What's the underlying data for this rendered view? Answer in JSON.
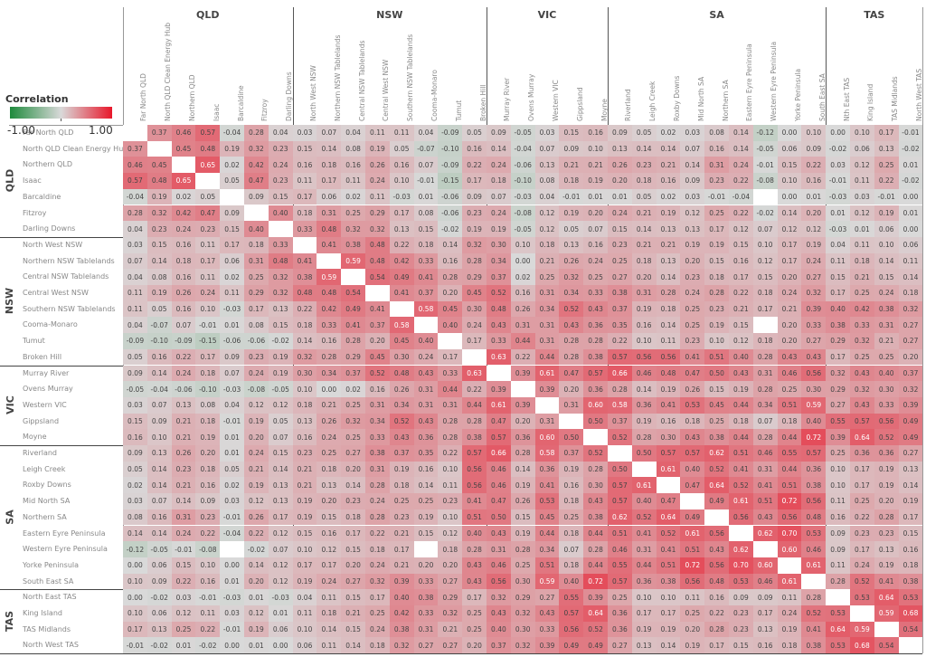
{
  "chart_data": {
    "type": "heatmap",
    "legend": {
      "title": "Correlation",
      "min_label": "-1.00",
      "max_label": "1.00",
      "range": [
        -1,
        1
      ],
      "placement": "top-left"
    },
    "colors": {
      "negative": "#1e8a3c",
      "zero": "#d9d9d9",
      "positive": "#e8172a",
      "empty": "#ffffff"
    },
    "column_groups": [
      {
        "name": "QLD",
        "columns": [
          "Far North QLD",
          "North QLD Clean Energy Hub",
          "Northern QLD",
          "Isaac",
          "Barcaldine",
          "Fitzroy",
          "Darling Downs"
        ]
      },
      {
        "name": "NSW",
        "columns": [
          "North West NSW",
          "Northern NSW Tablelands",
          "Central NSW Tablelands",
          "Central West NSW",
          "Southern NSW Tablelands",
          "Cooma-Monaro",
          "Tumut",
          "Broken Hill"
        ]
      },
      {
        "name": "VIC",
        "columns": [
          "Murray River",
          "Ovens Murray",
          "Western VIC",
          "Gippsland",
          "Moyne"
        ]
      },
      {
        "name": "SA",
        "columns": [
          "Riverland",
          "Leigh Creek",
          "Roxby Downs",
          "Mid North SA",
          "Northern SA",
          "Eastern Eyre Peninsula",
          "Western Eyre Peninsula",
          "Yorke Peninsula",
          "South East SA"
        ]
      },
      {
        "name": "TAS",
        "columns": [
          "Nth East TAS",
          "King Island",
          "TAS Midlands",
          "North West TAS"
        ]
      }
    ],
    "row_groups": [
      {
        "name": "QLD",
        "rows": [
          "Far North QLD",
          "North QLD Clean Energy Hub",
          "Northern QLD",
          "Isaac",
          "Barcaldine",
          "Fitzroy",
          "Darling Downs"
        ]
      },
      {
        "name": "NSW",
        "rows": [
          "North West NSW",
          "Northern NSW Tablelands",
          "Central NSW Tablelands",
          "Central West NSW",
          "Southern NSW Tablelands",
          "Cooma-Monaro",
          "Tumut",
          "Broken Hill"
        ]
      },
      {
        "name": "VIC",
        "rows": [
          "Murray River",
          "Ovens Murray",
          "Western VIC",
          "Gippsland",
          "Moyne"
        ]
      },
      {
        "name": "SA",
        "rows": [
          "Riverland",
          "Leigh Creek",
          "Roxby Downs",
          "Mid North SA",
          "Northern SA",
          "Eastern Eyre Peninsula",
          "Western Eyre Peninsula",
          "Yorke Peninsula",
          "South East SA"
        ]
      },
      {
        "name": "TAS",
        "rows": [
          "North East TAS",
          "King Island",
          "TAS Midlands",
          "North West TAS"
        ]
      }
    ],
    "values": [
      [
        null,
        0.37,
        0.46,
        0.57,
        -0.04,
        0.28,
        0.04,
        0.03,
        0.07,
        0.04,
        0.11,
        0.11,
        0.04,
        -0.09,
        0.05,
        0.09,
        -0.05,
        0.03,
        0.15,
        0.16,
        0.09,
        0.05,
        0.02,
        0.03,
        0.08,
        0.14,
        -0.12,
        0.0,
        0.1,
        0.0,
        0.1,
        0.17,
        -0.01
      ],
      [
        0.37,
        null,
        0.45,
        0.48,
        0.19,
        0.32,
        0.23,
        0.15,
        0.14,
        0.08,
        0.19,
        0.05,
        -0.07,
        -0.1,
        0.16,
        0.14,
        -0.04,
        0.07,
        0.09,
        0.1,
        0.13,
        0.14,
        0.14,
        0.07,
        0.16,
        0.14,
        -0.05,
        0.06,
        0.09,
        -0.02,
        0.06,
        0.13,
        -0.02
      ],
      [
        0.46,
        0.45,
        null,
        0.65,
        0.02,
        0.42,
        0.24,
        0.16,
        0.18,
        0.16,
        0.26,
        0.16,
        0.07,
        -0.09,
        0.22,
        0.24,
        -0.06,
        0.13,
        0.21,
        0.21,
        0.26,
        0.23,
        0.21,
        0.14,
        0.31,
        0.24,
        -0.01,
        0.15,
        0.22,
        0.03,
        0.12,
        0.25,
        0.01
      ],
      [
        0.57,
        0.48,
        0.65,
        null,
        0.05,
        0.47,
        0.23,
        0.11,
        0.17,
        0.11,
        0.24,
        0.1,
        -0.01,
        -0.15,
        0.17,
        0.18,
        -0.1,
        0.08,
        0.18,
        0.19,
        0.2,
        0.18,
        0.16,
        0.09,
        0.23,
        0.22,
        -0.08,
        0.1,
        0.16,
        -0.01,
        0.11,
        0.22,
        -0.02
      ],
      [
        -0.04,
        0.19,
        0.02,
        0.05,
        null,
        0.09,
        0.15,
        0.17,
        0.06,
        0.02,
        0.11,
        -0.03,
        0.01,
        -0.06,
        0.09,
        0.07,
        -0.03,
        0.04,
        -0.01,
        0.01,
        0.01,
        0.05,
        0.02,
        0.03,
        -0.01,
        -0.04,
        null,
        0.0,
        0.01,
        -0.03,
        0.03,
        -0.01,
        0.0
      ],
      [
        0.28,
        0.32,
        0.42,
        0.47,
        0.09,
        null,
        0.4,
        0.18,
        0.31,
        0.25,
        0.29,
        0.17,
        0.08,
        -0.06,
        0.23,
        0.24,
        -0.08,
        0.12,
        0.19,
        0.2,
        0.24,
        0.21,
        0.19,
        0.12,
        0.25,
        0.22,
        -0.02,
        0.14,
        0.2,
        0.01,
        0.12,
        0.19,
        0.01
      ],
      [
        0.04,
        0.23,
        0.24,
        0.23,
        0.15,
        0.4,
        null,
        0.33,
        0.48,
        0.32,
        0.32,
        0.13,
        0.15,
        -0.02,
        0.19,
        0.19,
        -0.05,
        0.12,
        0.05,
        0.07,
        0.15,
        0.14,
        0.13,
        0.13,
        0.17,
        0.12,
        0.07,
        0.12,
        0.12,
        -0.03,
        0.01,
        0.06,
        0.0
      ],
      [
        0.03,
        0.15,
        0.16,
        0.11,
        0.17,
        0.18,
        0.33,
        null,
        0.41,
        0.38,
        0.48,
        0.22,
        0.18,
        0.14,
        0.32,
        0.3,
        0.1,
        0.18,
        0.13,
        0.16,
        0.23,
        0.21,
        0.21,
        0.19,
        0.19,
        0.15,
        0.1,
        0.17,
        0.19,
        0.04,
        0.11,
        0.1,
        0.06
      ],
      [
        0.07,
        0.14,
        0.18,
        0.17,
        0.06,
        0.31,
        0.48,
        0.41,
        null,
        0.59,
        0.48,
        0.42,
        0.33,
        0.16,
        0.28,
        0.34,
        0.0,
        0.21,
        0.26,
        0.24,
        0.25,
        0.18,
        0.13,
        0.2,
        0.15,
        0.16,
        0.12,
        0.17,
        0.24,
        0.11,
        0.18,
        0.14,
        0.11
      ],
      [
        0.04,
        0.08,
        0.16,
        0.11,
        0.02,
        0.25,
        0.32,
        0.38,
        0.59,
        null,
        0.54,
        0.49,
        0.41,
        0.28,
        0.29,
        0.37,
        0.02,
        0.25,
        0.32,
        0.25,
        0.27,
        0.2,
        0.14,
        0.23,
        0.18,
        0.17,
        0.15,
        0.2,
        0.27,
        0.15,
        0.21,
        0.15,
        0.14
      ],
      [
        0.11,
        0.19,
        0.26,
        0.24,
        0.11,
        0.29,
        0.32,
        0.48,
        0.48,
        0.54,
        null,
        0.41,
        0.37,
        0.2,
        0.45,
        0.52,
        0.16,
        0.31,
        0.34,
        0.33,
        0.38,
        0.31,
        0.28,
        0.24,
        0.28,
        0.22,
        0.18,
        0.24,
        0.32,
        0.17,
        0.25,
        0.24,
        0.18
      ],
      [
        0.11,
        0.05,
        0.16,
        0.1,
        -0.03,
        0.17,
        0.13,
        0.22,
        0.42,
        0.49,
        0.41,
        null,
        0.58,
        0.45,
        0.3,
        0.48,
        0.26,
        0.34,
        0.52,
        0.43,
        0.37,
        0.19,
        0.18,
        0.25,
        0.23,
        0.21,
        0.17,
        0.21,
        0.39,
        0.4,
        0.42,
        0.38,
        0.32
      ],
      [
        0.04,
        -0.07,
        0.07,
        -0.01,
        0.01,
        0.08,
        0.15,
        0.18,
        0.33,
        0.41,
        0.37,
        0.58,
        null,
        0.4,
        0.24,
        0.43,
        0.31,
        0.31,
        0.43,
        0.36,
        0.35,
        0.16,
        0.14,
        0.25,
        0.19,
        0.15,
        null,
        0.2,
        0.33,
        0.38,
        0.33,
        0.31,
        0.27
      ],
      [
        -0.09,
        -0.1,
        -0.09,
        -0.15,
        -0.06,
        -0.06,
        -0.02,
        0.14,
        0.16,
        0.28,
        0.2,
        0.45,
        0.4,
        null,
        0.17,
        0.33,
        0.44,
        0.31,
        0.28,
        0.28,
        0.22,
        0.1,
        0.11,
        0.23,
        0.1,
        0.12,
        0.18,
        0.2,
        0.27,
        0.29,
        0.32,
        0.21,
        0.27
      ],
      [
        0.05,
        0.16,
        0.22,
        0.17,
        0.09,
        0.23,
        0.19,
        0.32,
        0.28,
        0.29,
        0.45,
        0.3,
        0.24,
        0.17,
        null,
        0.63,
        0.22,
        0.44,
        0.28,
        0.38,
        0.57,
        0.56,
        0.56,
        0.41,
        0.51,
        0.4,
        0.28,
        0.43,
        0.43,
        0.17,
        0.25,
        0.25,
        0.2
      ],
      [
        0.09,
        0.14,
        0.24,
        0.18,
        0.07,
        0.24,
        0.19,
        0.3,
        0.34,
        0.37,
        0.52,
        0.48,
        0.43,
        0.33,
        0.63,
        null,
        0.39,
        0.61,
        0.47,
        0.57,
        0.66,
        0.46,
        0.48,
        0.47,
        0.5,
        0.43,
        0.31,
        0.46,
        0.56,
        0.32,
        0.43,
        0.4,
        0.37
      ],
      [
        -0.05,
        -0.04,
        -0.06,
        -0.1,
        -0.03,
        -0.08,
        -0.05,
        0.1,
        0.0,
        0.02,
        0.16,
        0.26,
        0.31,
        0.44,
        0.22,
        0.39,
        null,
        0.39,
        0.2,
        0.36,
        0.28,
        0.14,
        0.19,
        0.26,
        0.15,
        0.19,
        0.28,
        0.25,
        0.3,
        0.29,
        0.32,
        0.3,
        0.32
      ],
      [
        0.03,
        0.07,
        0.13,
        0.08,
        0.04,
        0.12,
        0.12,
        0.18,
        0.21,
        0.25,
        0.31,
        0.34,
        0.31,
        0.31,
        0.44,
        0.61,
        0.39,
        null,
        0.31,
        0.6,
        0.58,
        0.36,
        0.41,
        0.53,
        0.45,
        0.44,
        0.34,
        0.51,
        0.59,
        0.27,
        0.43,
        0.33,
        0.39
      ],
      [
        0.15,
        0.09,
        0.21,
        0.18,
        -0.01,
        0.19,
        0.05,
        0.13,
        0.26,
        0.32,
        0.34,
        0.52,
        0.43,
        0.28,
        0.28,
        0.47,
        0.2,
        0.31,
        null,
        0.5,
        0.37,
        0.19,
        0.16,
        0.18,
        0.25,
        0.18,
        0.07,
        0.18,
        0.4,
        0.55,
        0.57,
        0.56,
        0.49
      ],
      [
        0.16,
        0.1,
        0.21,
        0.19,
        0.01,
        0.2,
        0.07,
        0.16,
        0.24,
        0.25,
        0.33,
        0.43,
        0.36,
        0.28,
        0.38,
        0.57,
        0.36,
        0.6,
        0.5,
        null,
        0.52,
        0.28,
        0.3,
        0.43,
        0.38,
        0.44,
        0.28,
        0.44,
        0.72,
        0.39,
        0.64,
        0.52,
        0.49
      ],
      [
        0.09,
        0.13,
        0.26,
        0.2,
        0.01,
        0.24,
        0.15,
        0.23,
        0.25,
        0.27,
        0.38,
        0.37,
        0.35,
        0.22,
        0.57,
        0.66,
        0.28,
        0.58,
        0.37,
        0.52,
        null,
        0.5,
        0.57,
        0.57,
        0.62,
        0.51,
        0.46,
        0.55,
        0.57,
        0.25,
        0.36,
        0.36,
        0.27
      ],
      [
        0.05,
        0.14,
        0.23,
        0.18,
        0.05,
        0.21,
        0.14,
        0.21,
        0.18,
        0.2,
        0.31,
        0.19,
        0.16,
        0.1,
        0.56,
        0.46,
        0.14,
        0.36,
        0.19,
        0.28,
        0.5,
        null,
        0.61,
        0.4,
        0.52,
        0.41,
        0.31,
        0.44,
        0.36,
        0.1,
        0.17,
        0.19,
        0.13
      ],
      [
        0.02,
        0.14,
        0.21,
        0.16,
        0.02,
        0.19,
        0.13,
        0.21,
        0.13,
        0.14,
        0.28,
        0.18,
        0.14,
        0.11,
        0.56,
        0.46,
        0.19,
        0.41,
        0.16,
        0.3,
        0.57,
        0.61,
        null,
        0.47,
        0.64,
        0.52,
        0.41,
        0.51,
        0.38,
        0.1,
        0.17,
        0.19,
        0.14
      ],
      [
        0.03,
        0.07,
        0.14,
        0.09,
        0.03,
        0.12,
        0.13,
        0.19,
        0.2,
        0.23,
        0.24,
        0.25,
        0.25,
        0.23,
        0.41,
        0.47,
        0.26,
        0.53,
        0.18,
        0.43,
        0.57,
        0.4,
        0.47,
        null,
        0.49,
        0.61,
        0.51,
        0.72,
        0.56,
        0.11,
        0.25,
        0.2,
        0.19
      ],
      [
        0.08,
        0.16,
        0.31,
        0.23,
        -0.01,
        0.26,
        0.17,
        0.19,
        0.15,
        0.18,
        0.28,
        0.23,
        0.19,
        0.1,
        0.51,
        0.5,
        0.15,
        0.45,
        0.25,
        0.38,
        0.62,
        0.52,
        0.64,
        0.49,
        null,
        0.56,
        0.43,
        0.56,
        0.48,
        0.16,
        0.22,
        0.28,
        0.17
      ],
      [
        0.14,
        0.14,
        0.24,
        0.22,
        -0.04,
        0.22,
        0.12,
        0.15,
        0.16,
        0.17,
        0.22,
        0.21,
        0.15,
        0.12,
        0.4,
        0.43,
        0.19,
        0.44,
        0.18,
        0.44,
        0.51,
        0.41,
        0.52,
        0.61,
        0.56,
        null,
        0.62,
        0.7,
        0.53,
        0.09,
        0.23,
        0.23,
        0.15
      ],
      [
        -0.12,
        -0.05,
        -0.01,
        -0.08,
        null,
        -0.02,
        0.07,
        0.1,
        0.12,
        0.15,
        0.18,
        0.17,
        null,
        0.18,
        0.28,
        0.31,
        0.28,
        0.34,
        0.07,
        0.28,
        0.46,
        0.31,
        0.41,
        0.51,
        0.43,
        0.62,
        null,
        0.6,
        0.46,
        0.09,
        0.17,
        0.13,
        0.16
      ],
      [
        0.0,
        0.06,
        0.15,
        0.1,
        0.0,
        0.14,
        0.12,
        0.17,
        0.17,
        0.2,
        0.24,
        0.21,
        0.2,
        0.2,
        0.43,
        0.46,
        0.25,
        0.51,
        0.18,
        0.44,
        0.55,
        0.44,
        0.51,
        0.72,
        0.56,
        0.7,
        0.6,
        null,
        0.61,
        0.11,
        0.24,
        0.19,
        0.18
      ],
      [
        0.1,
        0.09,
        0.22,
        0.16,
        0.01,
        0.2,
        0.12,
        0.19,
        0.24,
        0.27,
        0.32,
        0.39,
        0.33,
        0.27,
        0.43,
        0.56,
        0.3,
        0.59,
        0.4,
        0.72,
        0.57,
        0.36,
        0.38,
        0.56,
        0.48,
        0.53,
        0.46,
        0.61,
        null,
        0.28,
        0.52,
        0.41,
        0.38
      ],
      [
        0.0,
        -0.02,
        0.03,
        -0.01,
        -0.03,
        0.01,
        -0.03,
        0.04,
        0.11,
        0.15,
        0.17,
        0.4,
        0.38,
        0.29,
        0.17,
        0.32,
        0.29,
        0.27,
        0.55,
        0.39,
        0.25,
        0.1,
        0.1,
        0.11,
        0.16,
        0.09,
        0.09,
        0.11,
        0.28,
        null,
        0.53,
        0.64,
        0.53
      ],
      [
        0.1,
        0.06,
        0.12,
        0.11,
        0.03,
        0.12,
        0.01,
        0.11,
        0.18,
        0.21,
        0.25,
        0.42,
        0.33,
        0.32,
        0.25,
        0.43,
        0.32,
        0.43,
        0.57,
        0.64,
        0.36,
        0.17,
        0.17,
        0.25,
        0.22,
        0.23,
        0.17,
        0.24,
        0.52,
        0.53,
        null,
        0.59,
        0.68
      ],
      [
        0.17,
        0.13,
        0.25,
        0.22,
        -0.01,
        0.19,
        0.06,
        0.1,
        0.14,
        0.15,
        0.24,
        0.38,
        0.31,
        0.21,
        0.25,
        0.4,
        0.3,
        0.33,
        0.56,
        0.52,
        0.36,
        0.19,
        0.19,
        0.2,
        0.28,
        0.23,
        0.13,
        0.19,
        0.41,
        0.64,
        0.59,
        null,
        0.54
      ],
      [
        -0.01,
        -0.02,
        0.01,
        -0.02,
        0.0,
        0.01,
        0.0,
        0.06,
        0.11,
        0.14,
        0.18,
        0.32,
        0.27,
        0.27,
        0.2,
        0.37,
        0.32,
        0.39,
        0.49,
        0.49,
        0.27,
        0.13,
        0.14,
        0.19,
        0.17,
        0.15,
        0.16,
        0.18,
        0.38,
        0.53,
        0.68,
        0.54,
        null
      ]
    ]
  }
}
